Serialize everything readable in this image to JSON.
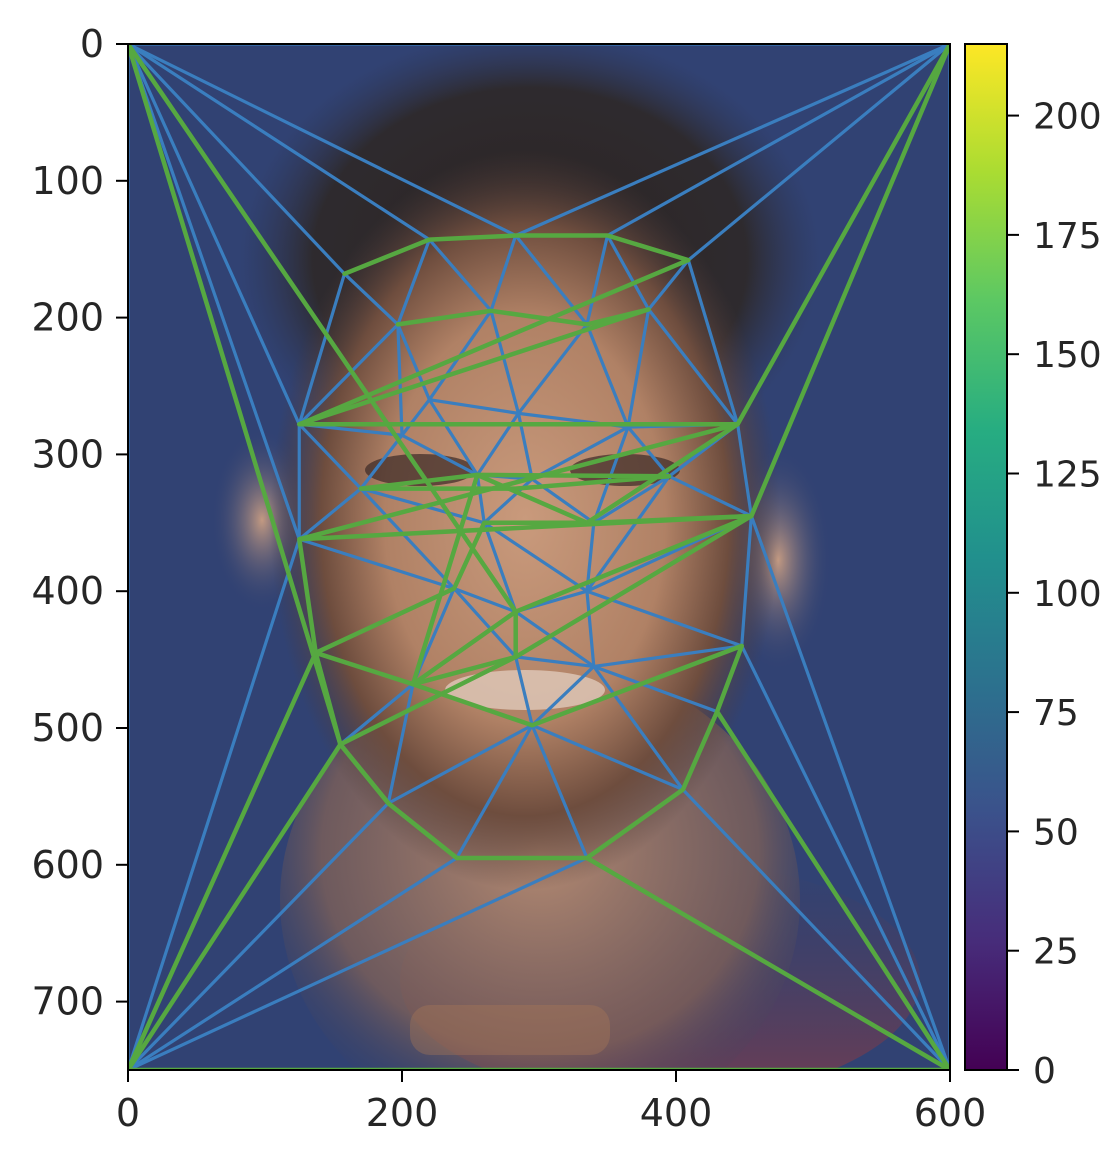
{
  "chart_data": [
    {
      "type": "image",
      "image_description": "Averaged portrait photograph of a smiling man with short dark hair against a dark blue background, overlaid with a Delaunay triangulation mesh of facial landmark points",
      "xlim": [
        0,
        600
      ],
      "ylim": [
        750,
        0
      ],
      "x_ticks": [
        "0",
        "200",
        "400",
        "600"
      ],
      "y_ticks": [
        "0",
        "100",
        "200",
        "300",
        "400",
        "500",
        "600",
        "700"
      ],
      "mesh_colors": {
        "blue": "#3a7ebf",
        "green": "#56a841"
      },
      "points": [
        [
          0,
          0
        ],
        [
          600,
          0
        ],
        [
          0,
          750
        ],
        [
          600,
          750
        ],
        [
          158,
          168
        ],
        [
          220,
          143
        ],
        [
          283,
          140
        ],
        [
          350,
          140
        ],
        [
          409,
          158
        ],
        [
          197,
          205
        ],
        [
          265,
          195
        ],
        [
          380,
          194
        ],
        [
          335,
          205
        ],
        [
          125,
          278
        ],
        [
          285,
          270
        ],
        [
          445,
          278
        ],
        [
          220,
          260
        ],
        [
          365,
          280
        ],
        [
          170,
          325
        ],
        [
          255,
          315
        ],
        [
          295,
          318
        ],
        [
          395,
          316
        ],
        [
          200,
          286
        ],
        [
          125,
          362
        ],
        [
          260,
          350
        ],
        [
          340,
          350
        ],
        [
          455,
          345
        ],
        [
          238,
          398
        ],
        [
          283,
          415
        ],
        [
          335,
          400
        ],
        [
          137,
          445
        ],
        [
          208,
          468
        ],
        [
          283,
          448
        ],
        [
          340,
          455
        ],
        [
          448,
          440
        ],
        [
          155,
          512
        ],
        [
          295,
          498
        ],
        [
          430,
          488
        ],
        [
          190,
          555
        ],
        [
          405,
          545
        ],
        [
          240,
          595
        ],
        [
          335,
          595
        ]
      ],
      "green_paths": [
        [
          [
            158,
            168
          ],
          [
            220,
            143
          ],
          [
            283,
            140
          ],
          [
            350,
            140
          ],
          [
            409,
            158
          ],
          [
            125,
            278
          ],
          [
            445,
            278
          ],
          [
            125,
            362
          ],
          [
            455,
            345
          ],
          [
            283,
            415
          ],
          [
            283,
            448
          ],
          [
            208,
            468
          ],
          [
            295,
            498
          ],
          [
            448,
            440
          ],
          [
            430,
            488
          ],
          [
            405,
            545
          ],
          [
            335,
            595
          ],
          [
            240,
            595
          ],
          [
            190,
            555
          ],
          [
            155,
            512
          ],
          [
            137,
            445
          ],
          [
            125,
            362
          ]
        ],
        [
          [
            137,
            445
          ],
          [
            238,
            398
          ],
          [
            260,
            350
          ],
          [
            340,
            350
          ],
          [
            455,
            345
          ]
        ],
        [
          [
            197,
            205
          ],
          [
            265,
            195
          ],
          [
            335,
            205
          ],
          [
            380,
            194
          ],
          [
            125,
            278
          ]
        ],
        [
          [
            170,
            325
          ],
          [
            255,
            315
          ],
          [
            395,
            316
          ],
          [
            283,
            325
          ],
          [
            170,
            325
          ]
        ],
        [
          [
            0,
            0
          ],
          [
            283,
            415
          ],
          [
            208,
            468
          ],
          [
            137,
            445
          ],
          [
            0,
            750
          ]
        ],
        [
          [
            600,
            0
          ],
          [
            455,
            345
          ],
          [
            283,
            448
          ],
          [
            155,
            512
          ],
          [
            0,
            750
          ]
        ],
        [
          [
            0,
            0
          ],
          [
            155,
            512
          ],
          [
            190,
            555
          ],
          [
            240,
            595
          ]
        ],
        [
          [
            600,
            0
          ],
          [
            445,
            278
          ],
          [
            335,
            350
          ],
          [
            255,
            315
          ],
          [
            208,
            468
          ]
        ],
        [
          [
            0,
            750
          ],
          [
            600,
            750
          ],
          [
            335,
            595
          ],
          [
            600,
            750
          ],
          [
            430,
            488
          ]
        ]
      ],
      "colorbar": {
        "colormap": "viridis",
        "range": [
          0,
          215
        ],
        "ticks": [
          "0",
          "25",
          "50",
          "75",
          "100",
          "125",
          "150",
          "175",
          "200"
        ]
      }
    }
  ]
}
